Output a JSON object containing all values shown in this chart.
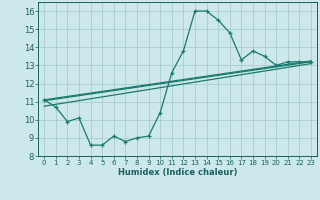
{
  "title": "",
  "xlabel": "Humidex (Indice chaleur)",
  "bg_color": "#cce8ea",
  "grid_color": "#aacdd0",
  "line_color": "#1a7a6e",
  "xlim": [
    -0.5,
    23.5
  ],
  "ylim": [
    8,
    16.5
  ],
  "xticks": [
    0,
    1,
    2,
    3,
    4,
    5,
    6,
    7,
    8,
    9,
    10,
    11,
    12,
    13,
    14,
    15,
    16,
    17,
    18,
    19,
    20,
    21,
    22,
    23
  ],
  "yticks": [
    8,
    9,
    10,
    11,
    12,
    13,
    14,
    15,
    16
  ],
  "curve1_x": [
    0,
    1,
    2,
    3,
    4,
    5,
    6,
    7,
    8,
    9,
    10,
    11,
    12,
    13,
    14,
    15,
    16,
    17,
    18,
    19,
    20,
    21,
    22,
    23
  ],
  "curve1_y": [
    11.1,
    10.7,
    9.9,
    10.1,
    8.6,
    8.6,
    9.1,
    8.8,
    9.0,
    9.1,
    10.4,
    12.6,
    13.8,
    16.0,
    16.0,
    15.5,
    14.8,
    13.3,
    13.8,
    13.5,
    13.0,
    13.2,
    13.2,
    13.2
  ],
  "line1_x": [
    0,
    23
  ],
  "line1_y": [
    11.05,
    13.2
  ],
  "line2_x": [
    0,
    23
  ],
  "line2_y": [
    11.1,
    13.25
  ],
  "line3_x": [
    0,
    23
  ],
  "line3_y": [
    10.75,
    13.1
  ]
}
